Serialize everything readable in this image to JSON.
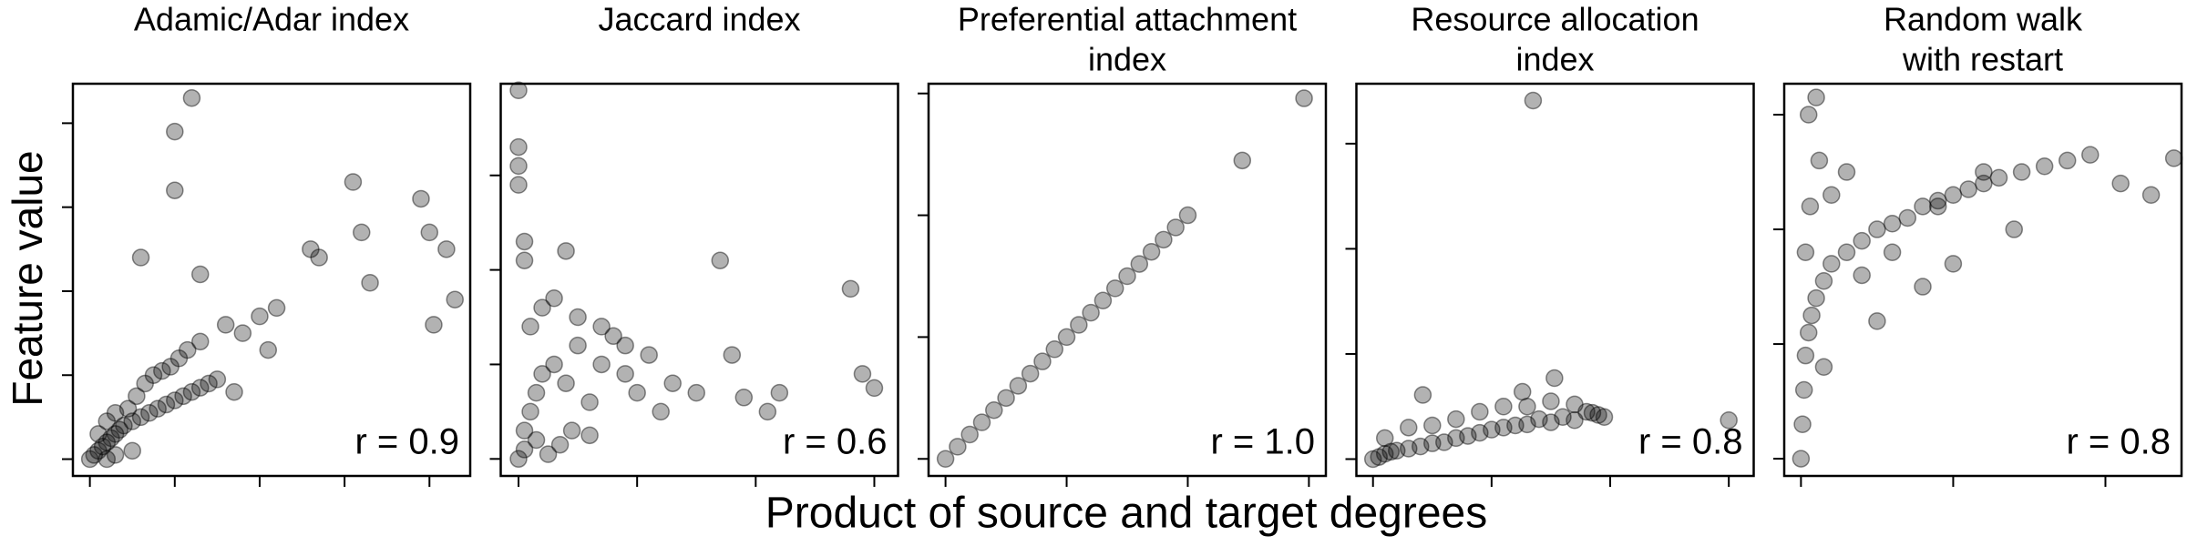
{
  "chart_data": [
    {
      "type": "scatter",
      "title": [
        "Adamic/Adar index"
      ],
      "annotation": "r = 0.9",
      "ylabel": "Feature value",
      "color": "#000000",
      "xlim": [
        -0.2,
        4.48
      ],
      "ylim": [
        -0.2,
        4.47
      ],
      "xticks": [
        0,
        1,
        2,
        3,
        4
      ],
      "yticks": [
        0,
        1,
        2,
        3,
        4
      ],
      "x": [
        0,
        0.05,
        0.1,
        0.15,
        0.2,
        0.25,
        0.3,
        0.35,
        0.4,
        0.5,
        0.6,
        0.7,
        0.8,
        0.9,
        1.0,
        1.1,
        1.2,
        1.3,
        1.4,
        1.5,
        0.1,
        0.2,
        0.3,
        0.45,
        0.55,
        0.65,
        0.75,
        0.85,
        0.95,
        1.05,
        1.15,
        1.3,
        1.6,
        1.8,
        2.0,
        2.2,
        0.3,
        0.5,
        0.2,
        1.7,
        2.1,
        2.6,
        2.7,
        3.1,
        3.2,
        3.3,
        3.9,
        4.0,
        4.05,
        4.2,
        4.3,
        1.2,
        1.0,
        1.0,
        0.6,
        1.3
      ],
      "y": [
        0,
        0.05,
        0.1,
        0.15,
        0.2,
        0.25,
        0.3,
        0.35,
        0.4,
        0.45,
        0.5,
        0.55,
        0.6,
        0.65,
        0.7,
        0.75,
        0.8,
        0.85,
        0.9,
        0.95,
        0.3,
        0.45,
        0.55,
        0.6,
        0.75,
        0.9,
        1.0,
        1.05,
        1.1,
        1.2,
        1.3,
        1.4,
        1.6,
        1.5,
        1.7,
        1.8,
        0.05,
        0.1,
        0.0,
        0.8,
        1.3,
        2.5,
        2.4,
        3.3,
        2.7,
        2.1,
        3.1,
        2.7,
        1.6,
        2.5,
        1.9,
        4.3,
        3.9,
        3.2,
        2.4,
        2.2
      ]
    },
    {
      "type": "scatter",
      "title": [
        "Jaccard index"
      ],
      "annotation": "r = 0.6",
      "color": "#000000",
      "xlim": [
        -0.15,
        3.2
      ],
      "ylim": [
        -0.18,
        3.97
      ],
      "xticks": [
        0,
        1,
        2,
        3
      ],
      "yticks": [
        0,
        1,
        2,
        3
      ],
      "x": [
        0,
        0,
        0,
        0,
        0.05,
        0.05,
        0.4,
        1.7,
        2.8,
        2.9,
        3.0,
        1.8,
        1.9,
        2.1,
        1.5,
        2.2,
        0,
        0.05,
        0.1,
        0.15,
        0.2,
        0.3,
        0.4,
        0.5,
        0.6,
        0.7,
        0.8,
        0.9,
        1.0,
        1.1,
        1.2,
        0.1,
        0.2,
        0.3,
        0.5,
        0.7,
        0.9,
        1.3,
        0.05,
        0.15,
        0.25,
        0.35,
        0.45,
        0.6
      ],
      "y": [
        3.9,
        3.3,
        3.1,
        2.9,
        2.3,
        2.1,
        2.2,
        2.1,
        1.8,
        0.9,
        0.75,
        1.1,
        0.65,
        0.5,
        0.7,
        0.7,
        0,
        0.3,
        0.5,
        0.7,
        0.9,
        1.0,
        0.8,
        1.2,
        0.6,
        1.0,
        1.3,
        0.9,
        0.7,
        1.1,
        0.5,
        1.4,
        1.6,
        1.7,
        1.5,
        1.4,
        1.2,
        0.8,
        0.1,
        0.2,
        0.05,
        0.15,
        0.3,
        0.25
      ]
    },
    {
      "type": "scatter",
      "title": [
        "Preferential attachment",
        "index"
      ],
      "annotation": "r = 1.0",
      "xlabel": "Product of source and target degrees",
      "color": "#000000",
      "xlim": [
        -0.14,
        3.14
      ],
      "ylim": [
        -0.14,
        3.08
      ],
      "xticks": [
        0,
        1,
        2,
        3
      ],
      "yticks": [
        0,
        1,
        2,
        3
      ],
      "x": [
        0,
        0.1,
        0.2,
        0.3,
        0.4,
        0.5,
        0.6,
        0.7,
        0.8,
        0.9,
        1.0,
        1.1,
        1.2,
        1.3,
        1.4,
        1.5,
        1.6,
        1.7,
        1.8,
        1.9,
        2.0,
        2.45,
        2.96
      ],
      "y": [
        0,
        0.1,
        0.2,
        0.3,
        0.4,
        0.5,
        0.6,
        0.7,
        0.8,
        0.9,
        1.0,
        1.1,
        1.2,
        1.3,
        1.4,
        1.5,
        1.6,
        1.7,
        1.8,
        1.9,
        2.0,
        2.45,
        2.96
      ]
    },
    {
      "type": "scatter",
      "title": [
        "Resource allocation",
        "index"
      ],
      "annotation": "r = 0.8",
      "color": "#000000",
      "xlim": [
        -0.14,
        3.21
      ],
      "ylim": [
        -0.16,
        3.57
      ],
      "xticks": [
        0,
        1,
        2,
        3
      ],
      "yticks": [
        0,
        1,
        2,
        3
      ],
      "x": [
        1.35,
        1.53,
        1.26,
        3.0,
        1.85,
        0.42,
        0,
        0.05,
        0.1,
        0.15,
        0.2,
        0.3,
        0.4,
        0.5,
        0.6,
        0.7,
        0.8,
        0.9,
        1.0,
        1.1,
        1.2,
        1.3,
        1.4,
        1.5,
        1.6,
        1.7,
        1.8,
        1.9,
        1.95,
        0.1,
        0.3,
        0.5,
        0.7,
        0.9,
        1.1,
        1.3,
        1.5,
        1.7
      ],
      "y": [
        3.41,
        0.77,
        0.64,
        0.37,
        0.44,
        0.61,
        0,
        0.02,
        0.05,
        0.07,
        0.08,
        0.1,
        0.12,
        0.15,
        0.16,
        0.2,
        0.22,
        0.25,
        0.28,
        0.3,
        0.32,
        0.33,
        0.38,
        0.35,
        0.4,
        0.37,
        0.45,
        0.42,
        0.4,
        0.2,
        0.3,
        0.32,
        0.38,
        0.45,
        0.5,
        0.5,
        0.55,
        0.52
      ]
    },
    {
      "type": "scatter",
      "title": [
        "Random walk",
        "with restart"
      ],
      "annotation": "r = 0.8",
      "color": "#000000",
      "xlim": [
        -0.11,
        2.5
      ],
      "ylim": [
        -0.15,
        3.27
      ],
      "xticks": [
        0,
        1,
        2
      ],
      "yticks": [
        0,
        1,
        2,
        3
      ],
      "x": [
        0,
        0.01,
        0.02,
        0.03,
        0.05,
        0.07,
        0.1,
        0.15,
        0.2,
        0.3,
        0.4,
        0.5,
        0.6,
        0.7,
        0.8,
        0.9,
        1.0,
        1.1,
        1.2,
        1.3,
        1.45,
        1.6,
        1.75,
        1.9,
        2.1,
        2.3,
        2.45,
        0.1,
        0.05,
        0.12,
        0.3,
        0.2,
        0.5,
        0.8,
        1.0,
        1.4,
        0.15,
        0.4,
        0.6,
        0.9,
        1.2,
        0.03,
        0.06
      ],
      "y": [
        0,
        0.3,
        0.6,
        0.9,
        1.1,
        1.25,
        1.4,
        1.55,
        1.7,
        1.8,
        1.9,
        2.0,
        2.05,
        2.1,
        2.2,
        2.25,
        2.3,
        2.35,
        2.4,
        2.45,
        2.5,
        2.55,
        2.6,
        2.65,
        2.4,
        2.3,
        2.62,
        3.15,
        3.0,
        2.6,
        2.5,
        2.3,
        1.2,
        1.5,
        1.7,
        2.0,
        0.8,
        1.6,
        1.8,
        2.2,
        2.5,
        1.8,
        2.2
      ]
    }
  ]
}
